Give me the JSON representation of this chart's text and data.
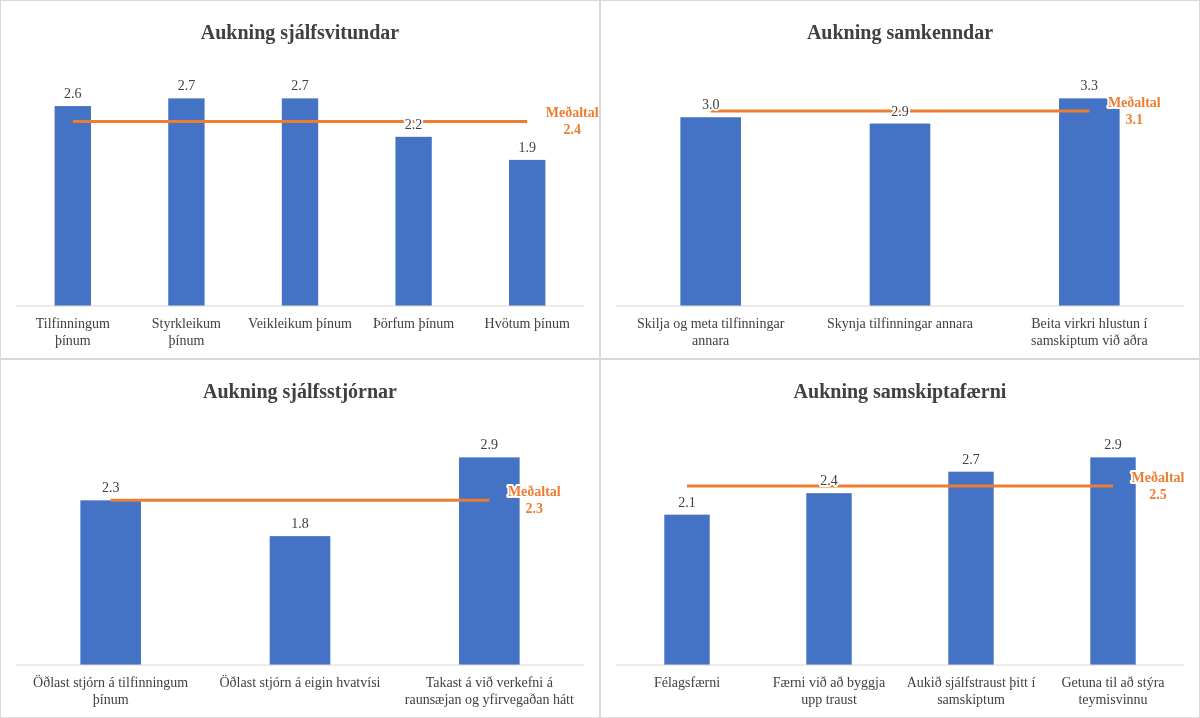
{
  "chart_data": [
    {
      "type": "bar",
      "title": "Aukning sjálfsvitundar",
      "categories": [
        "Tilfinningum þínum",
        "Styrkleikum þínum",
        "Veikleikum þínum",
        "Þörfum þínum",
        "Hvötum þínum"
      ],
      "values": [
        2.6,
        2.7,
        2.7,
        2.2,
        1.9
      ],
      "value_labels": [
        "2.6",
        "2.7",
        "2.7",
        "2.2",
        "1.9"
      ],
      "color": "#4472c4",
      "ref_lines": [
        {
          "axis": "y",
          "value": 2.4,
          "label": "Meðaltal 2.4",
          "color": "#ed7d31"
        }
      ]
    },
    {
      "type": "bar",
      "title": "Aukning samkenndar",
      "categories": [
        "Skilja og meta tilfinningar annara",
        "Skynja tilfinningar annara",
        "Beita virkri hlustun í samskiptum við aðra"
      ],
      "values": [
        3.0,
        2.9,
        3.3
      ],
      "value_labels": [
        "3.0",
        "2.9",
        "3.3"
      ],
      "color": "#4472c4",
      "ref_lines": [
        {
          "axis": "y",
          "value": 3.1,
          "label": "Meðaltal 3.1",
          "color": "#ed7d31"
        }
      ]
    },
    {
      "type": "bar",
      "title": "Aukning sjálfsstjórnar",
      "categories": [
        "Öðlast stjórn á tilfinningum þínum",
        "Öðlast stjórn á eigin hvatvísi",
        "Takast á við verkefni á raunsæjan og yfirvegaðan hátt"
      ],
      "values": [
        2.3,
        1.8,
        2.9
      ],
      "value_labels": [
        "2.3",
        "1.8",
        "2.9"
      ],
      "color": "#4472c4",
      "ref_lines": [
        {
          "axis": "y",
          "value": 2.3,
          "label": "Meðaltal 2.3",
          "color": "#ed7d31"
        }
      ]
    },
    {
      "type": "bar",
      "title": "Aukning samskiptafærni",
      "categories": [
        "Félagsfærni",
        "Færni við að byggja upp traust",
        "Aukið sjálfstraust þitt í samskiptum",
        "Getuna til að stýra teymisvinnu"
      ],
      "values": [
        2.1,
        2.4,
        2.7,
        2.9
      ],
      "value_labels": [
        "2.1",
        "2.4",
        "2.7",
        "2.9"
      ],
      "color": "#4472c4",
      "ref_lines": [
        {
          "axis": "y",
          "value": 2.5,
          "label": "Meðaltal 2.5",
          "color": "#ed7d31"
        }
      ]
    }
  ]
}
